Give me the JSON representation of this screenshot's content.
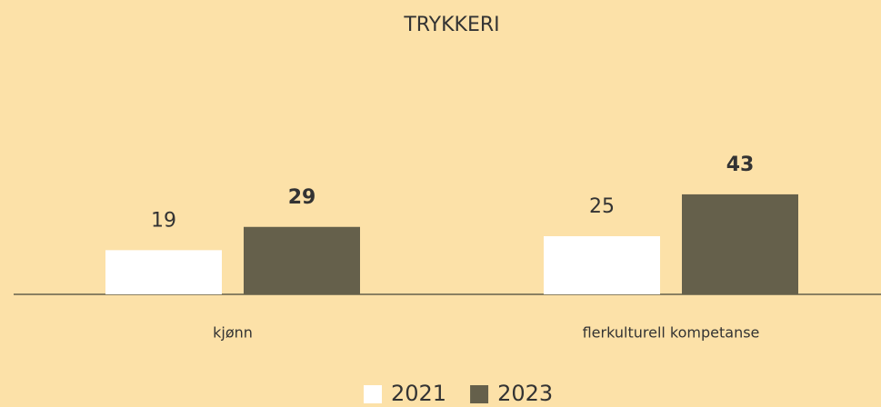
{
  "chart_data": {
    "type": "bar",
    "title": "TRYKKERI",
    "categories": [
      "kjønn",
      "flerkulturell kompetanse"
    ],
    "series": [
      {
        "name": "2021",
        "color": "#ffffff",
        "values": [
          19,
          25
        ]
      },
      {
        "name": "2023",
        "color": "#65604b",
        "values": [
          29,
          43
        ]
      }
    ]
  }
}
